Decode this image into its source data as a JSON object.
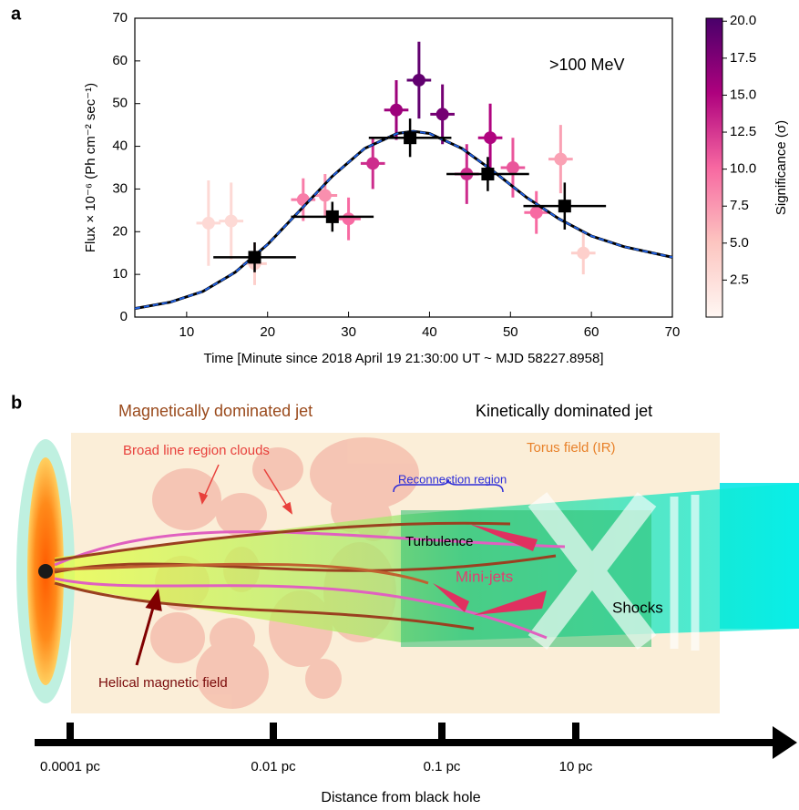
{
  "chart_data": {
    "type": "scatter",
    "panel_label": "a",
    "ylabel": "Flux × 10⁻⁶ (Ph cm⁻² sec⁻¹)",
    "xlabel": "Time [Minute since 2018 April 19 21:30:00 UT ~ MJD 58227.8958]",
    "annotation": ">100 MeV",
    "xlim": [
      3.6,
      70
    ],
    "xticks": [
      10,
      20,
      30,
      40,
      50,
      60,
      70
    ],
    "ylim": [
      0,
      70
    ],
    "yticks": [
      0,
      10,
      20,
      30,
      40,
      50,
      60,
      70
    ],
    "series": [
      {
        "marker": "circle",
        "x": [
          12.7,
          15.5,
          18.4,
          24.4,
          27.1,
          30.0,
          33.0,
          35.9,
          38.7,
          41.6,
          44.6,
          47.5,
          50.3,
          53.2,
          56.2,
          59.0
        ],
        "values": [
          22,
          22.5,
          12.5,
          27.5,
          28.5,
          23,
          36,
          48.5,
          55.5,
          47.5,
          33.5,
          42,
          35,
          24.5,
          37,
          15
        ],
        "errors": [
          10,
          9,
          5,
          5,
          5,
          5,
          6,
          7,
          9,
          7,
          7,
          8,
          7,
          5,
          8,
          5
        ],
        "xerr": [
          1.5,
          1.5,
          1.5,
          1.5,
          1.5,
          1.5,
          1.5,
          1.5,
          1.5,
          1.5,
          1.5,
          1.5,
          1.5,
          1.5,
          1.5,
          1.5
        ],
        "significance": [
          3,
          3,
          4,
          9,
          8,
          10,
          13,
          16,
          19,
          18,
          13,
          15,
          11,
          10,
          7,
          4
        ]
      },
      {
        "marker": "square",
        "color": "#000000",
        "x": [
          18.4,
          28.0,
          37.6,
          47.2,
          56.7
        ],
        "values": [
          14,
          23.5,
          42,
          33.5,
          26
        ],
        "errors": [
          3.5,
          3.5,
          4.5,
          4,
          5.5
        ],
        "xerr": [
          5.1,
          5.1,
          5.1,
          5.1,
          5.1
        ]
      },
      {
        "marker": "line",
        "color": "#1f5fe0",
        "x": [
          3.6,
          8,
          12,
          16,
          20,
          24,
          28,
          32,
          36,
          38,
          40,
          44,
          48,
          52,
          56,
          60,
          64,
          70
        ],
        "values": [
          2,
          3.5,
          6,
          10.5,
          17,
          25,
          33,
          39.5,
          43,
          43.5,
          43,
          39.5,
          34,
          28,
          23,
          19,
          16.5,
          14
        ]
      }
    ],
    "colorbar": {
      "label": "Significance (σ)",
      "lim": [
        0,
        20.2
      ],
      "colors": [
        "#fff7f3",
        "#fcc5c0",
        "#f768a1",
        "#ae017e",
        "#49006a"
      ],
      "ticks": [
        2.5,
        {
          "value": 5,
          "label": "5.0"
        },
        7.5,
        {
          "value": 10,
          "label": "10.0"
        },
        12.5,
        {
          "value": 15,
          "label": "15.0"
        },
        17.5,
        {
          "value": 20,
          "label": "20.0"
        }
      ]
    }
  },
  "diagram": {
    "panel_label": "b",
    "headings": {
      "magnetic": "Magnetically dominated jet",
      "kinetic": "Kinetically dominated jet"
    },
    "labels": {
      "blr": "Broad line region clouds",
      "torus": "Torus field (IR)",
      "reconnection": "Reconnection region",
      "turbulence": "Turbulence",
      "minijets": "Mini-jets",
      "shocks": "Shocks",
      "helical": "Helical magnetic field"
    },
    "axis": {
      "ticks": [
        "0.0001 pc",
        "0.01 pc",
        "0.1 pc",
        "10 pc"
      ],
      "title": "Distance from black hole"
    }
  }
}
